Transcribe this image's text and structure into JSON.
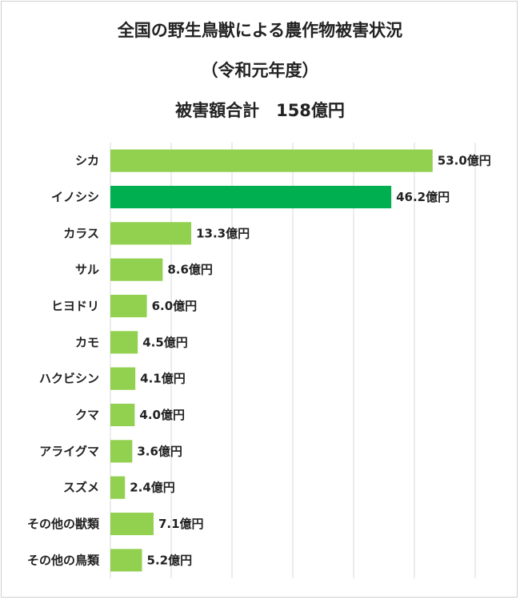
{
  "chart_data": {
    "type": "bar",
    "orientation": "horizontal",
    "title": "全国の野生鳥獣による農作物被害状況",
    "subtitle": "（令和元年度）",
    "total_label": "被害額合計　158億円",
    "value_suffix": "億円",
    "categories": [
      "シカ",
      "イノシシ",
      "カラス",
      "サル",
      "ヒヨドリ",
      "カモ",
      "ハクビシン",
      "クマ",
      "アライグマ",
      "スズメ",
      "その他の獣類",
      "その他の鳥類"
    ],
    "values": [
      53.0,
      46.2,
      13.3,
      8.6,
      6.0,
      4.5,
      4.1,
      4.0,
      3.6,
      2.4,
      7.1,
      5.2
    ],
    "value_labels": [
      "53.0億円",
      "46.2億円",
      "13.3億円",
      "8.6億円",
      "6.0億円",
      "4.5億円",
      "4.1億円",
      "4.0億円",
      "3.6億円",
      "2.4億円",
      "7.1億円",
      "5.2億円"
    ],
    "xlim": [
      0,
      60
    ],
    "grid": true,
    "colors": {
      "default_bar": "#92d050",
      "highlight_bar": "#00b050",
      "gridline": "#d9d9d9"
    },
    "highlight_index": 1
  }
}
